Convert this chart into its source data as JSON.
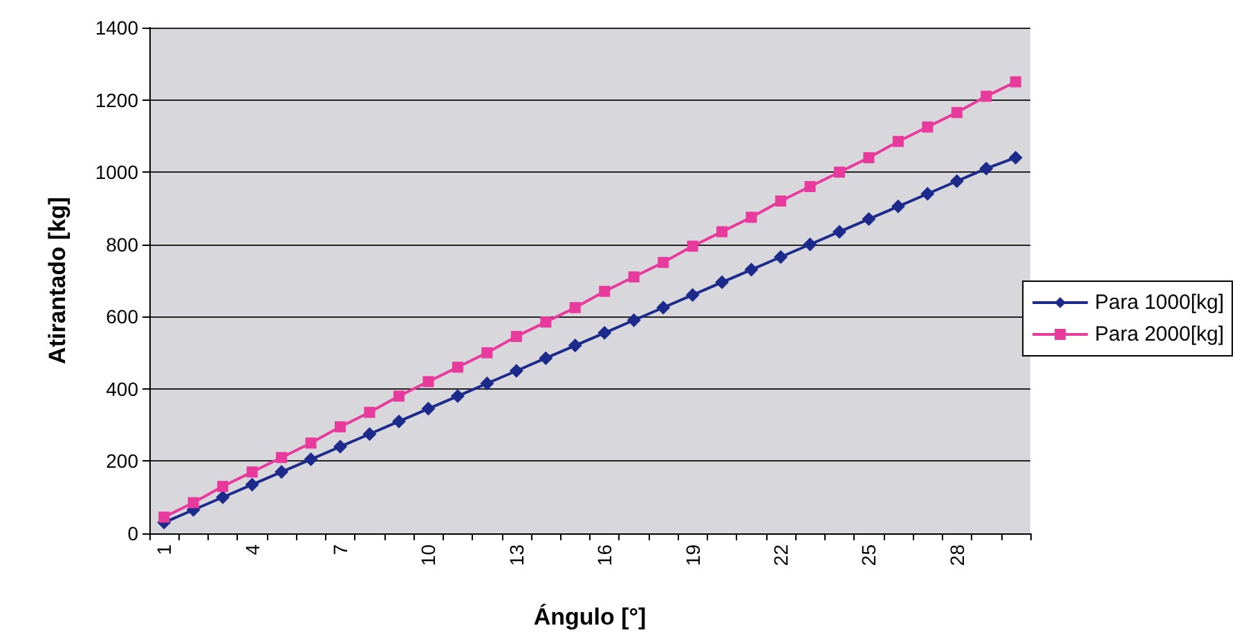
{
  "chart_data": {
    "type": "line",
    "xlabel": "Ángulo [°]",
    "ylabel": "Atirantado [kg]",
    "categories": [
      "1",
      null,
      null,
      "4",
      null,
      null,
      "7",
      null,
      null,
      "10",
      null,
      null,
      "13",
      null,
      null,
      "16",
      null,
      null,
      "19",
      null,
      null,
      "22",
      null,
      null,
      "25",
      null,
      null,
      "28",
      null,
      null
    ],
    "series": [
      {
        "name": "Para 1000[kg]",
        "color": "#1c2a8c",
        "marker": "diamond",
        "values": [
          30,
          65,
          100,
          135,
          170,
          205,
          240,
          275,
          310,
          345,
          380,
          415,
          450,
          485,
          520,
          555,
          590,
          625,
          660,
          695,
          730,
          765,
          800,
          835,
          870,
          905,
          940,
          975,
          1010,
          1040
        ]
      },
      {
        "name": "Para 2000[kg]",
        "color": "#e8399c",
        "marker": "square",
        "values": [
          45,
          85,
          130,
          170,
          210,
          250,
          295,
          335,
          380,
          420,
          460,
          500,
          545,
          585,
          625,
          670,
          710,
          750,
          795,
          835,
          875,
          920,
          960,
          1000,
          1040,
          1085,
          1125,
          1165,
          1210,
          1250
        ]
      }
    ],
    "ylim": [
      0,
      1400
    ],
    "yticks": [
      0,
      200,
      400,
      600,
      800,
      1000,
      1200,
      1400
    ],
    "grid": "y",
    "legend": "right"
  }
}
